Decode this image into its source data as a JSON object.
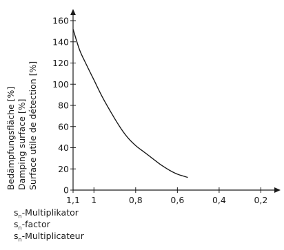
{
  "chart_data": {
    "type": "line",
    "title": "",
    "xlabel": [
      "-Multiplikator",
      "-factor",
      "-Multiplicateur"
    ],
    "xlabel_symbol": "s",
    "xlabel_subscript": "n",
    "ylabel": [
      "Bedämpfungsfläche [%]",
      "Damping surface [%]",
      "Surface utile de détection [%]"
    ],
    "x_reversed": true,
    "xlim": [
      1.1,
      0.1
    ],
    "ylim": [
      0,
      160
    ],
    "xticks": [
      1.1,
      1,
      0.8,
      0.6,
      0.4,
      0.2
    ],
    "xtick_labels": [
      "1,1",
      "1",
      "0,8",
      "0,6",
      "0,4",
      "0,2"
    ],
    "yticks": [
      0,
      20,
      40,
      60,
      80,
      100,
      120,
      140,
      160
    ],
    "ytick_labels": [
      "0",
      "20",
      "40",
      "60",
      "80",
      "100",
      "120",
      "140",
      "160"
    ],
    "grid": false,
    "line_color": "#1a1a1a",
    "series": [
      {
        "x": [
          1.1,
          1.07,
          1.04,
          1.0,
          0.96,
          0.92,
          0.88,
          0.84,
          0.8,
          0.76,
          0.72,
          0.68,
          0.64,
          0.6,
          0.55
        ],
        "y": [
          152,
          133,
          120,
          104,
          88,
          74,
          61,
          50,
          42,
          36,
          30,
          24,
          19,
          15,
          12
        ]
      }
    ]
  }
}
